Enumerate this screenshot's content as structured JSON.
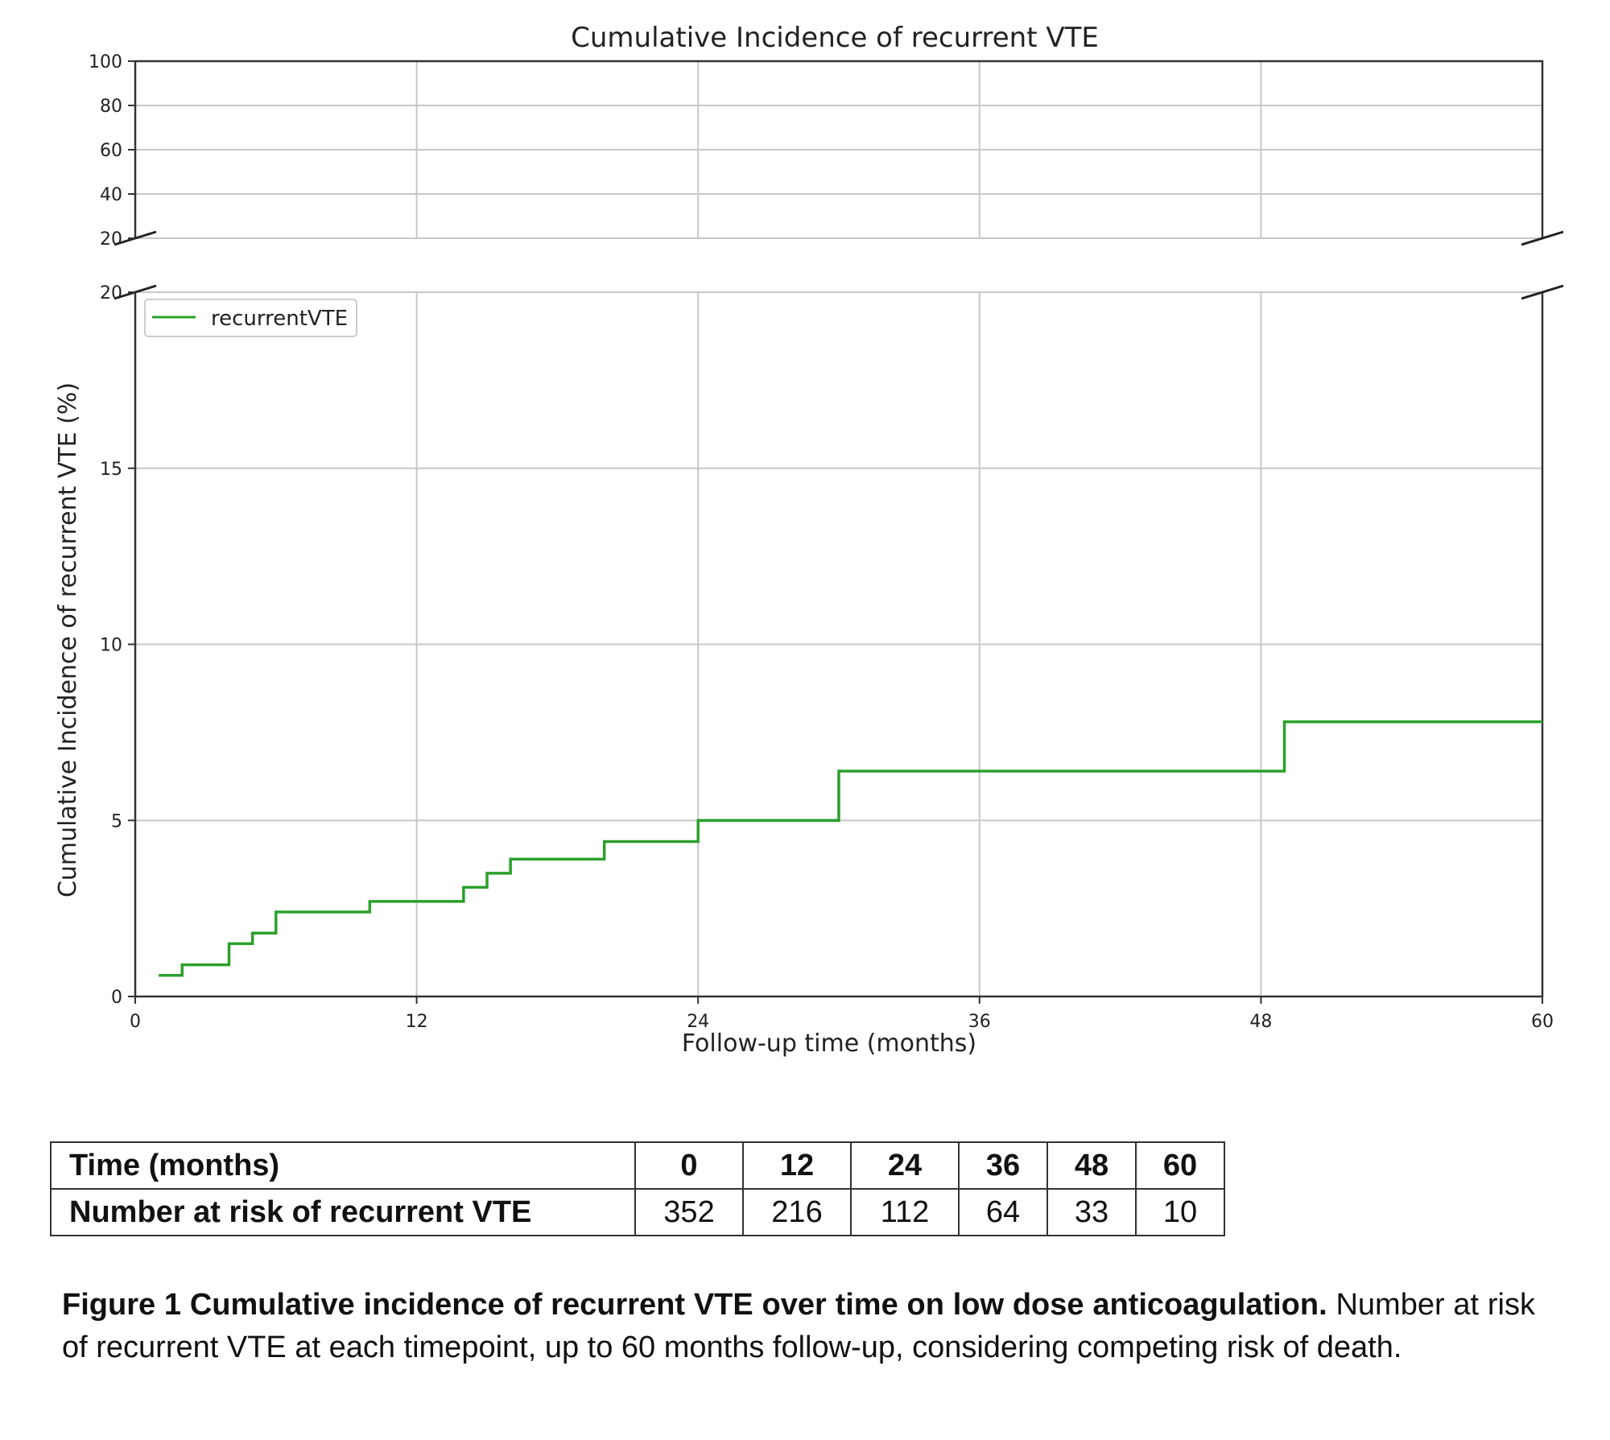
{
  "chart_data": {
    "type": "line",
    "title": "Cumulative Incidence of recurrent VTE",
    "xlabel": "Follow-up time (months)",
    "ylabel": "Cumulative Incidence of recurrent VTE (%)",
    "xlim": [
      0,
      60
    ],
    "ylim_lower": [
      0,
      20
    ],
    "ylim_upper": [
      20,
      100
    ],
    "broken_y_axis": true,
    "grid": true,
    "legend_position": "top-left",
    "x_ticks": [
      "0",
      "12",
      "24",
      "36",
      "48",
      "60"
    ],
    "y_ticks_lower": [
      "0",
      "5",
      "10",
      "15",
      "20"
    ],
    "y_ticks_upper": [
      "20",
      "40",
      "60",
      "80",
      "100"
    ],
    "series": [
      {
        "name": "recurrentVTE",
        "color": "#2ca02c",
        "step": "post",
        "x": [
          1,
          2,
          4,
          5,
          6,
          10,
          14,
          15,
          16,
          20,
          24,
          30,
          49,
          60
        ],
        "y": [
          0.6,
          0.9,
          1.5,
          1.8,
          2.4,
          2.7,
          3.1,
          3.5,
          3.9,
          4.4,
          5.0,
          6.4,
          7.8,
          7.8
        ]
      }
    ]
  },
  "risk_table": {
    "header_label": "Time (months)",
    "times": [
      "0",
      "12",
      "24",
      "36",
      "48",
      "60"
    ],
    "row_label": "Number at risk of recurrent VTE",
    "counts": [
      "352",
      "216",
      "112",
      "64",
      "33",
      "10"
    ]
  },
  "caption": {
    "bold": "Figure 1 Cumulative incidence of recurrent VTE over time on low dose anticoagulation.",
    "text": " Number at risk of recurrent VTE at each timepoint, up to 60 months follow-up, considering competing risk of death."
  }
}
